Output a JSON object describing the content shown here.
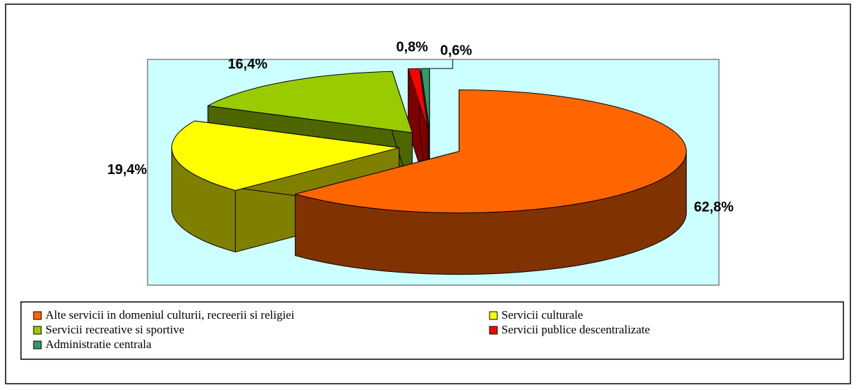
{
  "chart_data": {
    "type": "pie3d",
    "categories": [
      "Alte servicii in domeniul culturii, recreerii si religiei",
      "Servicii culturale",
      "Servicii recreative si sportive",
      "Servicii publice descentralizate",
      "Administratie centrala"
    ],
    "values": [
      62.8,
      19.4,
      16.4,
      0.8,
      0.6
    ],
    "value_labels": [
      "62,8%",
      "19,4%",
      "16,4%",
      "0,8%",
      "0,6%"
    ],
    "colors": [
      "#ff6600",
      "#ffff00",
      "#99cc00",
      "#ff0000",
      "#339966"
    ],
    "legend": "bottom"
  }
}
